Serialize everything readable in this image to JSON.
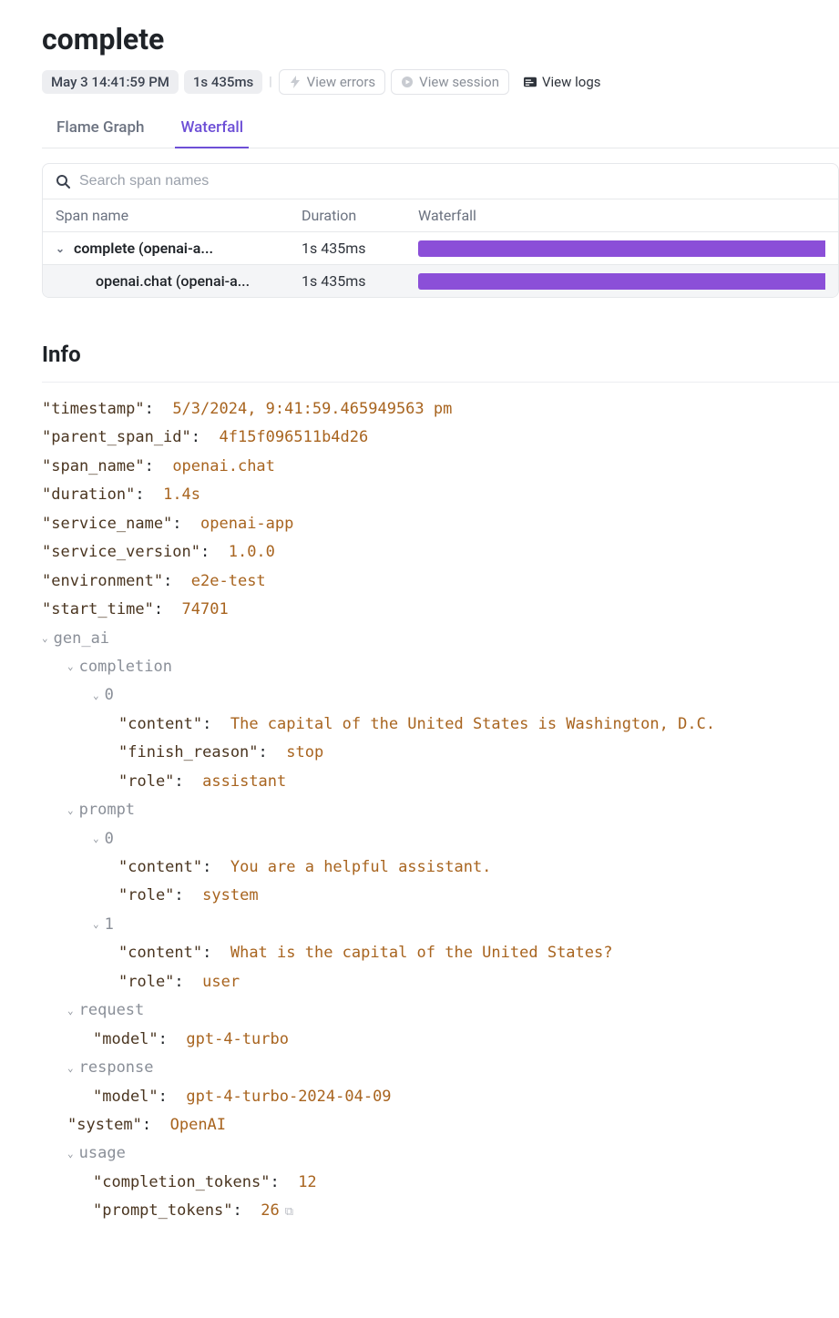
{
  "header": {
    "title": "complete",
    "timestamp": "May 3 14:41:59 PM",
    "duration": "1s 435ms",
    "view_errors": "View errors",
    "view_session": "View session",
    "view_logs": "View logs"
  },
  "tabs": {
    "flame": "Flame Graph",
    "waterfall": "Waterfall",
    "active": "waterfall"
  },
  "search": {
    "placeholder": "Search span names"
  },
  "table": {
    "headers": {
      "span": "Span name",
      "duration": "Duration",
      "waterfall": "Waterfall"
    },
    "rows": [
      {
        "name": "complete (openai-a...",
        "duration": "1s 435ms",
        "indent": 0,
        "bar_left_pct": 0,
        "bar_width_pct": 100,
        "color": "#8b4fd8",
        "selected": false,
        "has_children": true
      },
      {
        "name": "openai.chat (openai-a...",
        "duration": "1s 435ms",
        "indent": 1,
        "bar_left_pct": 0,
        "bar_width_pct": 100,
        "color": "#8b4fd8",
        "selected": true,
        "has_children": false
      }
    ]
  },
  "info": {
    "title": "Info",
    "fields": [
      {
        "k": "\"timestamp\"",
        "v": "5/3/2024, 9:41:59.465949563 pm"
      },
      {
        "k": "\"parent_span_id\"",
        "v": "4f15f096511b4d26"
      },
      {
        "k": "\"span_name\"",
        "v": "openai.chat"
      },
      {
        "k": "\"duration\"",
        "v": "1.4s"
      },
      {
        "k": "\"service_name\"",
        "v": "openai-app"
      },
      {
        "k": "\"service_version\"",
        "v": "1.0.0"
      },
      {
        "k": "\"environment\"",
        "v": "e2e-test"
      },
      {
        "k": "\"start_time\"",
        "v": "74701"
      }
    ],
    "gen_ai": {
      "label": "gen_ai",
      "completion": {
        "label": "completion",
        "items": [
          {
            "idx": "0",
            "content": "The capital of the United States is Washington, D.C.",
            "finish_reason": "stop",
            "role": "assistant"
          }
        ]
      },
      "prompt": {
        "label": "prompt",
        "items": [
          {
            "idx": "0",
            "content": "You are a helpful assistant.",
            "role": "system"
          },
          {
            "idx": "1",
            "content": "What is the capital of the United States?",
            "role": "user"
          }
        ]
      },
      "request": {
        "label": "request",
        "model": "gpt-4-turbo"
      },
      "response": {
        "label": "response",
        "model": "gpt-4-turbo-2024-04-09"
      },
      "system": "OpenAI",
      "usage": {
        "label": "usage",
        "completion_tokens": "12",
        "prompt_tokens": "26"
      }
    }
  },
  "colors": {
    "accent": "#6d4fd6",
    "bar": "#8b4fd8",
    "key": "#4a3520",
    "value": "#a8641f",
    "muted": "#8a8f98"
  }
}
